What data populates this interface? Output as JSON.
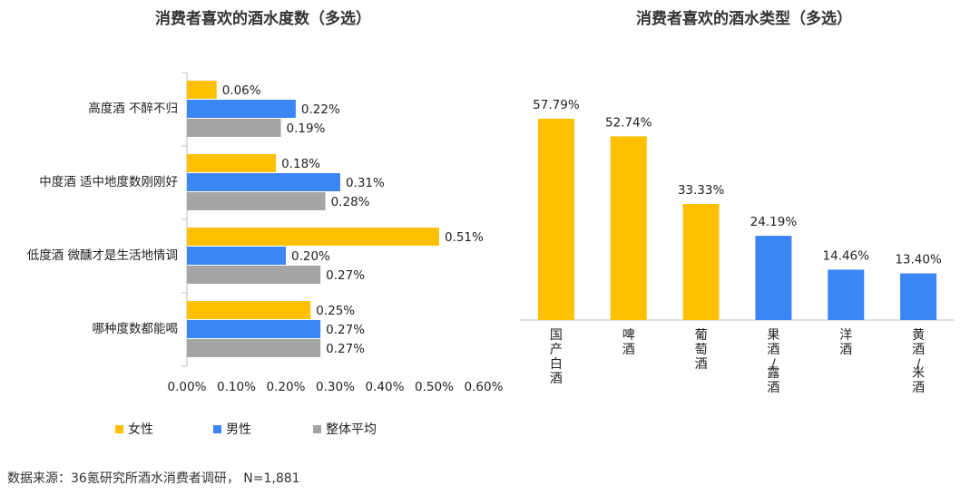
{
  "left_chart": {
    "title": "消费者喜欢的酒水度数（多选）",
    "categories": [
      "高度酒 不醉不归",
      "中度酒 适中地度数刚刚好",
      "低度酒 微醺才是生活地情调",
      "哪种度数都能喝"
    ],
    "series": [
      {
        "name": "女性",
        "color": "#FFC000",
        "values": [
          0.06,
          0.18,
          0.51,
          0.25
        ],
        "labels": [
          "0.06%",
          "0.18%",
          "0.51%",
          "0.25%"
        ]
      },
      {
        "name": "男性",
        "color": "#3A86F5",
        "values": [
          0.22,
          0.31,
          0.2,
          0.27
        ],
        "labels": [
          "0.22%",
          "0.31%",
          "0.20%",
          "0.27%"
        ]
      },
      {
        "name": "整体平均",
        "color": "#A5A5A5",
        "values": [
          0.19,
          0.28,
          0.27,
          0.27
        ],
        "labels": [
          "0.19%",
          "0.28%",
          "0.27%",
          "0.27%"
        ]
      }
    ],
    "x_ticks": [
      "0.00%",
      "0.10%",
      "0.20%",
      "0.30%",
      "0.40%",
      "0.50%",
      "0.60%"
    ],
    "xlim": [
      0,
      0.6
    ]
  },
  "right_chart": {
    "title": "消费者喜欢的酒水类型（多选）",
    "bars": [
      {
        "category": "国产白酒",
        "value": 57.79,
        "label": "57.79%",
        "color": "#FFC000"
      },
      {
        "category": "啤酒",
        "value": 52.74,
        "label": "52.74%",
        "color": "#FFC000"
      },
      {
        "category": "葡萄酒",
        "value": 33.33,
        "label": "33.33%",
        "color": "#FFC000"
      },
      {
        "category": "果酒/露酒",
        "value": 24.19,
        "label": "24.19%",
        "color": "#3A86F5"
      },
      {
        "category": "洋酒",
        "value": 14.46,
        "label": "14.46%",
        "color": "#3A86F5"
      },
      {
        "category": "黄酒/米酒",
        "value": 13.4,
        "label": "13.40%",
        "color": "#3A86F5"
      }
    ],
    "ylim": [
      0,
      60
    ]
  },
  "source": "数据来源：36氪研究所酒水消费者调研，  N=1,881",
  "chart_data": [
    {
      "type": "bar",
      "orientation": "horizontal",
      "title": "消费者喜欢的酒水度数（多选）",
      "categories": [
        "高度酒 不醉不归",
        "中度酒 适中地度数刚刚好",
        "低度酒 微醺才是生活地情调",
        "哪种度数都能喝"
      ],
      "series": [
        {
          "name": "女性",
          "values": [
            0.06,
            0.18,
            0.51,
            0.25
          ]
        },
        {
          "name": "男性",
          "values": [
            0.22,
            0.31,
            0.2,
            0.27
          ]
        },
        {
          "name": "整体平均",
          "values": [
            0.19,
            0.28,
            0.27,
            0.27
          ]
        }
      ],
      "xlim": [
        0,
        0.6
      ],
      "x_ticks": [
        "0.00%",
        "0.10%",
        "0.20%",
        "0.30%",
        "0.40%",
        "0.50%",
        "0.60%"
      ],
      "legend": "bottom-left",
      "grid": false
    },
    {
      "type": "bar",
      "orientation": "vertical",
      "title": "消费者喜欢的酒水类型（多选）",
      "categories": [
        "国产白酒",
        "啤酒",
        "葡萄酒",
        "果酒/露酒",
        "洋酒",
        "黄酒/米酒"
      ],
      "values": [
        57.79,
        52.74,
        33.33,
        24.19,
        14.46,
        13.4
      ],
      "grid": false
    }
  ]
}
